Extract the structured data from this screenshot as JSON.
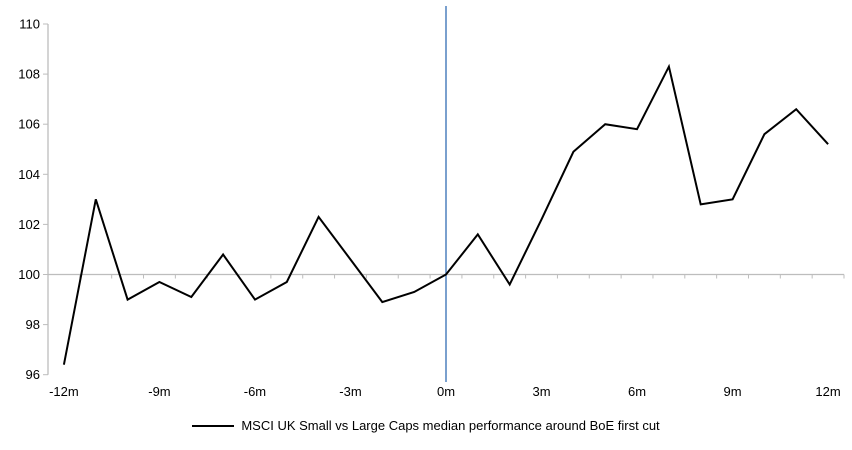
{
  "chart_data": {
    "type": "line",
    "title": "",
    "xlabel": "",
    "ylabel": "",
    "x": [
      -12,
      -11,
      -10,
      -9,
      -8,
      -7,
      -6,
      -5,
      -4,
      -3,
      -2,
      -1,
      0,
      1,
      2,
      3,
      4,
      5,
      6,
      7,
      8,
      9,
      10,
      11,
      12
    ],
    "series": [
      {
        "name": "MSCI UK Small vs Large Caps median performance around BoE first cut",
        "color": "#000000",
        "values": [
          96.4,
          103.0,
          99.0,
          99.7,
          99.1,
          100.8,
          99.0,
          99.7,
          102.3,
          100.6,
          98.9,
          99.3,
          100.0,
          101.6,
          99.6,
          102.2,
          104.9,
          106.0,
          105.8,
          108.3,
          102.8,
          103.0,
          105.6,
          106.6,
          105.2
        ]
      }
    ],
    "x_tick_labels": [
      "-12m",
      "-9m",
      "-6m",
      "-3m",
      "0m",
      "3m",
      "6m",
      "9m",
      "12m"
    ],
    "x_tick_positions": [
      -12,
      -9,
      -6,
      -3,
      0,
      3,
      6,
      9,
      12
    ],
    "y_ticks": [
      96,
      98,
      100,
      102,
      104,
      106,
      108,
      110
    ],
    "y_tick_labels": [
      "96",
      "98",
      "100",
      "102",
      "104",
      "106",
      "108",
      "110"
    ],
    "ylim": [
      96,
      110
    ],
    "baseline_value": 100,
    "event_line_x": 0,
    "event_line_color": "#4F81BD",
    "axis_color": "#BDBDBD",
    "grid": "off",
    "legend_position": "bottom"
  }
}
